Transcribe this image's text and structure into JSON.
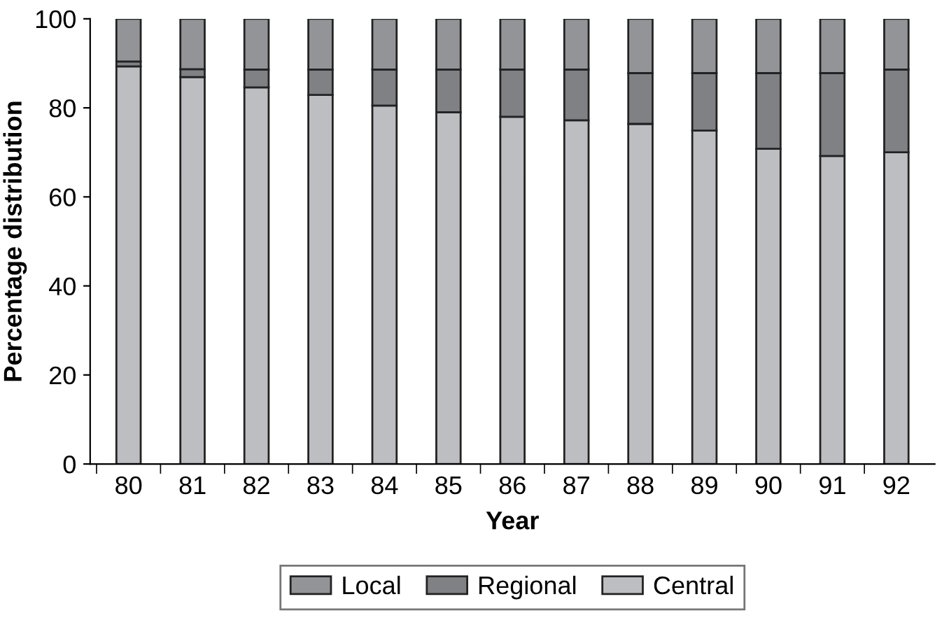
{
  "chart_data": {
    "type": "bar",
    "stacked": true,
    "xlabel": "Year",
    "ylabel": "Percentage distribution",
    "categories": [
      "80",
      "81",
      "82",
      "83",
      "84",
      "85",
      "86",
      "87",
      "88",
      "89",
      "90",
      "91",
      "92"
    ],
    "series": [
      {
        "name": "Central",
        "color": "#bdbec2",
        "values": [
          89.3,
          86.9,
          84.6,
          82.9,
          80.5,
          79.0,
          78.0,
          77.2,
          76.4,
          74.9,
          70.8,
          69.2,
          70.0
        ]
      },
      {
        "name": "Regional",
        "color": "#808184",
        "values": [
          1.1,
          1.8,
          4.0,
          5.7,
          8.1,
          9.6,
          10.6,
          11.4,
          11.4,
          12.9,
          17.0,
          18.6,
          18.6
        ]
      },
      {
        "name": "Local",
        "color": "#939498",
        "values": [
          9.6,
          11.3,
          11.4,
          11.4,
          11.4,
          11.4,
          11.4,
          11.4,
          12.2,
          12.2,
          12.2,
          12.2,
          11.4
        ]
      }
    ],
    "ylim": [
      0,
      100
    ],
    "yticks": [
      0,
      20,
      40,
      60,
      80,
      100
    ],
    "grid": false,
    "legend": "bottom"
  }
}
